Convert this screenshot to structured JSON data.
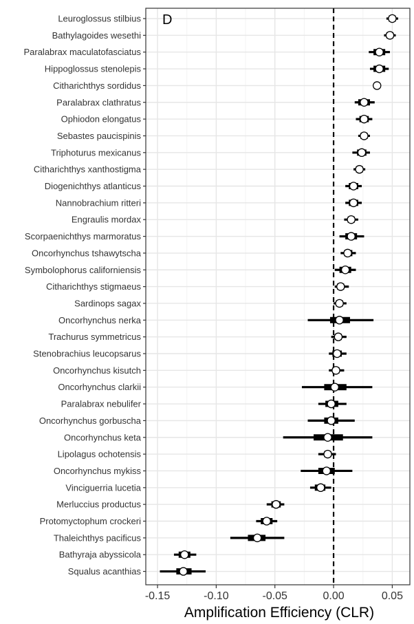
{
  "chart_data": {
    "type": "forest",
    "panel_label": "D",
    "xlabel": "Amplification Efficiency (CLR)",
    "xlim": [
      -0.16,
      0.065
    ],
    "xticks": [
      -0.15,
      -0.1,
      -0.05,
      0.0,
      0.05
    ],
    "xtick_labels": [
      "-0.15",
      "-0.10",
      "-0.05",
      "0.00",
      "0.05"
    ],
    "reference_line": 0.0,
    "grid": true,
    "colors": {
      "point_fill": "#ffffff",
      "point_stroke": "#000000",
      "interval": "#000000",
      "grid_major": "#e6e6e6",
      "grid_minor": "#f3f3f3",
      "panel_border": "#333333"
    },
    "species": [
      {
        "name": "Leuroglossus stilbius",
        "median": 0.05,
        "inner": [
          0.047,
          0.053
        ],
        "outer": [
          0.045,
          0.055
        ]
      },
      {
        "name": "Bathylagoides wesethi",
        "median": 0.048,
        "inner": [
          0.045,
          0.051
        ],
        "outer": [
          0.043,
          0.053
        ]
      },
      {
        "name": "Paralabrax maculatofasciatus",
        "median": 0.039,
        "inner": [
          0.034,
          0.044
        ],
        "outer": [
          0.03,
          0.048
        ]
      },
      {
        "name": "Hippoglossus stenolepis",
        "median": 0.039,
        "inner": [
          0.034,
          0.044
        ],
        "outer": [
          0.031,
          0.047
        ]
      },
      {
        "name": "Citharichthys sordidus",
        "median": 0.037,
        "inner": [
          0.036,
          0.038
        ],
        "outer": [
          0.035,
          0.039
        ]
      },
      {
        "name": "Paralabrax clathratus",
        "median": 0.026,
        "inner": [
          0.021,
          0.031
        ],
        "outer": [
          0.018,
          0.035
        ]
      },
      {
        "name": "Ophiodon elongatus",
        "median": 0.026,
        "inner": [
          0.022,
          0.03
        ],
        "outer": [
          0.019,
          0.033
        ]
      },
      {
        "name": "Sebastes paucispinis",
        "median": 0.026,
        "inner": [
          0.023,
          0.029
        ],
        "outer": [
          0.021,
          0.031
        ]
      },
      {
        "name": "Triphoturus mexicanus",
        "median": 0.024,
        "inner": [
          0.02,
          0.028
        ],
        "outer": [
          0.016,
          0.031
        ]
      },
      {
        "name": "Citharichthys xanthostigma",
        "median": 0.022,
        "inner": [
          0.019,
          0.025
        ],
        "outer": [
          0.017,
          0.027
        ]
      },
      {
        "name": "Diogenichthys atlanticus",
        "median": 0.017,
        "inner": [
          0.013,
          0.021
        ],
        "outer": [
          0.01,
          0.024
        ]
      },
      {
        "name": "Nannobrachium ritteri",
        "median": 0.017,
        "inner": [
          0.013,
          0.021
        ],
        "outer": [
          0.01,
          0.024
        ]
      },
      {
        "name": "Engraulis mordax",
        "median": 0.015,
        "inner": [
          0.012,
          0.018
        ],
        "outer": [
          0.009,
          0.021
        ]
      },
      {
        "name": "Scorpaenichthys marmoratus",
        "median": 0.015,
        "inner": [
          0.01,
          0.02
        ],
        "outer": [
          0.005,
          0.026
        ]
      },
      {
        "name": "Oncorhynchus tshawytscha",
        "median": 0.012,
        "inner": [
          0.009,
          0.016
        ],
        "outer": [
          0.006,
          0.019
        ]
      },
      {
        "name": "Symbolophorus californiensis",
        "median": 0.01,
        "inner": [
          0.005,
          0.015
        ],
        "outer": [
          0.001,
          0.019
        ]
      },
      {
        "name": "Citharichthys stigmaeus",
        "median": 0.006,
        "inner": [
          0.003,
          0.009
        ],
        "outer": [
          0.001,
          0.013
        ]
      },
      {
        "name": "Sardinops sagax",
        "median": 0.005,
        "inner": [
          0.002,
          0.008
        ],
        "outer": [
          0.0,
          0.011
        ]
      },
      {
        "name": "Oncorhynchus nerka",
        "median": 0.005,
        "inner": [
          -0.003,
          0.014
        ],
        "outer": [
          -0.022,
          0.034
        ]
      },
      {
        "name": "Trachurus symmetricus",
        "median": 0.004,
        "inner": [
          0.001,
          0.007
        ],
        "outer": [
          -0.002,
          0.011
        ]
      },
      {
        "name": "Stenobrachius leucopsarus",
        "median": 0.003,
        "inner": [
          -0.001,
          0.007
        ],
        "outer": [
          -0.004,
          0.011
        ]
      },
      {
        "name": "Oncorhynchus kisutch",
        "median": 0.002,
        "inner": [
          -0.001,
          0.005
        ],
        "outer": [
          -0.004,
          0.009
        ]
      },
      {
        "name": "Oncorhynchus clarkii",
        "median": 0.001,
        "inner": [
          -0.008,
          0.011
        ],
        "outer": [
          -0.027,
          0.033
        ]
      },
      {
        "name": "Paralabrax nebulifer",
        "median": -0.002,
        "inner": [
          -0.007,
          0.004
        ],
        "outer": [
          -0.013,
          0.011
        ]
      },
      {
        "name": "Oncorhynchus gorbuscha",
        "median": -0.002,
        "inner": [
          -0.008,
          0.004
        ],
        "outer": [
          -0.022,
          0.018
        ]
      },
      {
        "name": "Oncorhynchus keta",
        "median": -0.005,
        "inner": [
          -0.017,
          0.008
        ],
        "outer": [
          -0.043,
          0.033
        ]
      },
      {
        "name": "Lipolagus ochotensis",
        "median": -0.005,
        "inner": [
          -0.008,
          -0.002
        ],
        "outer": [
          -0.013,
          0.002
        ]
      },
      {
        "name": "Oncorhynchus mykiss",
        "median": -0.006,
        "inner": [
          -0.013,
          0.001
        ],
        "outer": [
          -0.028,
          0.016
        ]
      },
      {
        "name": "Vinciguerria lucetia",
        "median": -0.011,
        "inner": [
          -0.016,
          -0.007
        ],
        "outer": [
          -0.02,
          -0.002
        ]
      },
      {
        "name": "Merluccius productus",
        "median": -0.049,
        "inner": [
          -0.053,
          -0.045
        ],
        "outer": [
          -0.057,
          -0.042
        ]
      },
      {
        "name": "Protomyctophum crockeri",
        "median": -0.057,
        "inner": [
          -0.062,
          -0.052
        ],
        "outer": [
          -0.066,
          -0.048
        ]
      },
      {
        "name": "Thaleichthys pacificus",
        "median": -0.065,
        "inner": [
          -0.073,
          -0.058
        ],
        "outer": [
          -0.088,
          -0.042
        ]
      },
      {
        "name": "Bathyraja abyssicola",
        "median": -0.127,
        "inner": [
          -0.132,
          -0.122
        ],
        "outer": [
          -0.136,
          -0.117
        ]
      },
      {
        "name": "Squalus acanthias",
        "median": -0.128,
        "inner": [
          -0.134,
          -0.121
        ],
        "outer": [
          -0.148,
          -0.109
        ]
      }
    ]
  }
}
